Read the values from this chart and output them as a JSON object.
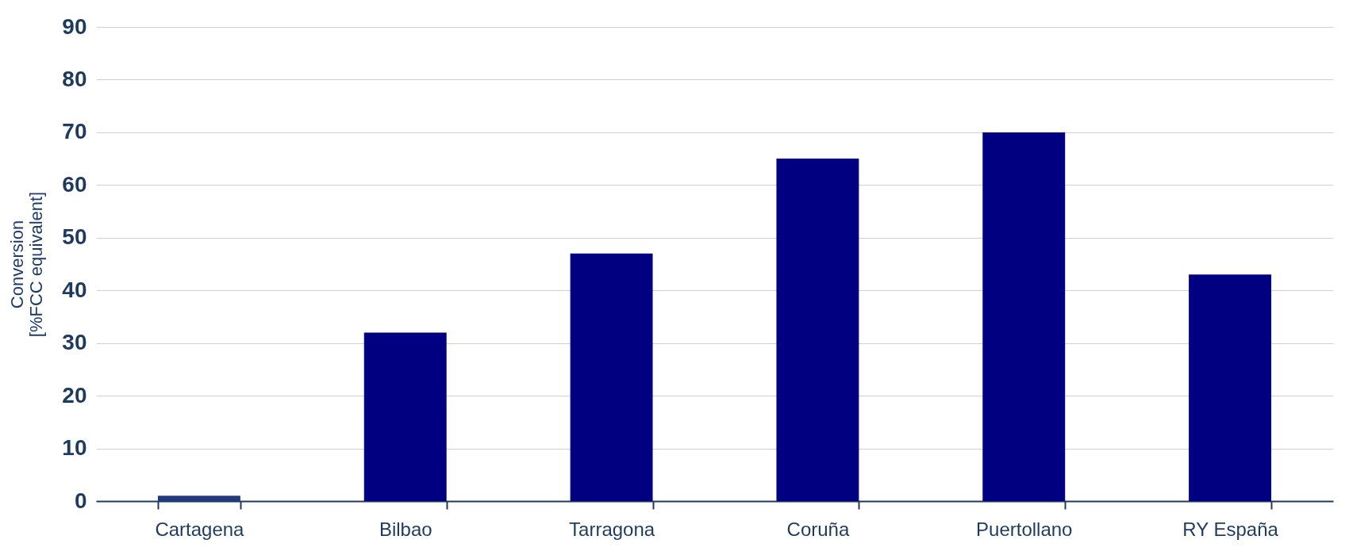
{
  "chart_data": {
    "type": "bar",
    "ylabel": "Conversion\n[%FCC equivalent]",
    "categories": [
      "Cartagena",
      "Bilbao",
      "Tarragona",
      "Coruña",
      "Puertollano",
      "RY España"
    ],
    "values": [
      1,
      32,
      47,
      65,
      70,
      43
    ],
    "colors": [
      "#1f3a80",
      "#000080",
      "#000080",
      "#000080",
      "#000080",
      "#000080"
    ],
    "ylim": [
      0,
      90
    ],
    "yticks": [
      0,
      10,
      20,
      30,
      40,
      50,
      60,
      70,
      80,
      90
    ],
    "grid": "y"
  }
}
